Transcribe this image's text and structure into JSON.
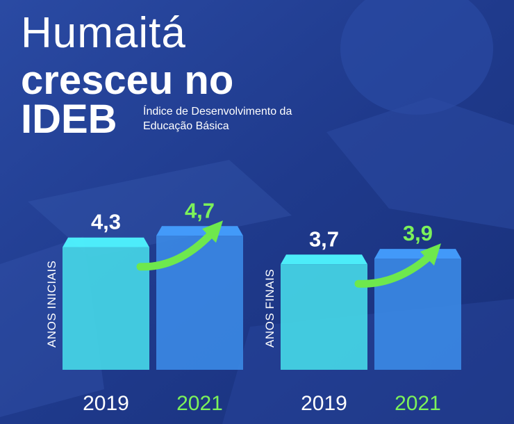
{
  "header": {
    "title_line1": "Humaitá",
    "title_line2": "cresceu no",
    "title_line3": "IDEB",
    "subtitle": "Índice de Desenvolvimento da Educação Básica"
  },
  "colors": {
    "background": "#1f3c8f",
    "bar_2019": "#45d6e6",
    "bar_2021": "#3b8ae6",
    "year_2019_text": "#ffffff",
    "year_2021_text": "#7cf25a",
    "value_2019_text": "#ffffff",
    "value_2021_text": "#7cf25a",
    "arrow": "#6ee84d"
  },
  "chart_data": [
    {
      "type": "bar",
      "group_label": "ANOS INICIAIS",
      "categories": [
        "2019",
        "2021"
      ],
      "values": [
        4.3,
        4.7
      ],
      "value_labels": [
        "4,3",
        "4,7"
      ]
    },
    {
      "type": "bar",
      "group_label": "ANOS FINAIS",
      "categories": [
        "2019",
        "2021"
      ],
      "values": [
        3.7,
        3.9
      ],
      "value_labels": [
        "3,7",
        "3,9"
      ]
    }
  ]
}
